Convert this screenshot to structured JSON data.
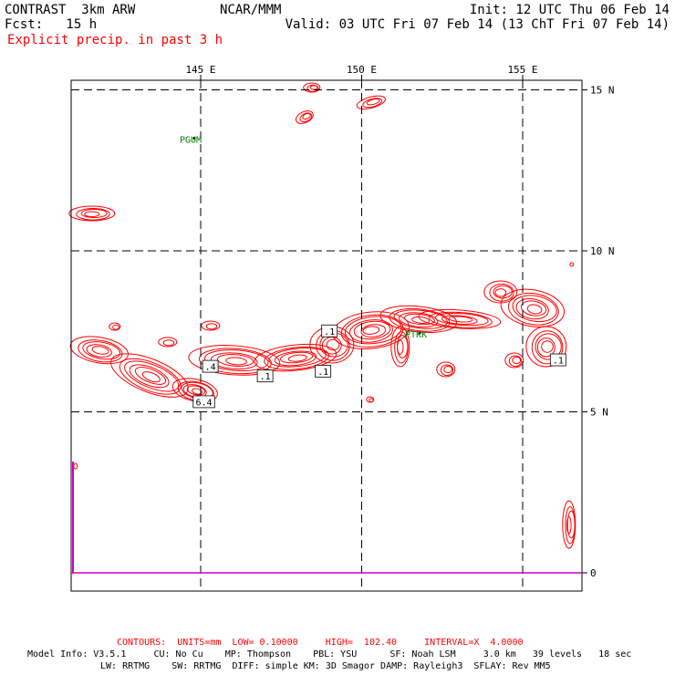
{
  "header": {
    "model": "CONTRAST  3km ARW",
    "org": "NCAR/MMM",
    "init": "Init: 12 UTC Thu 06 Feb 14",
    "fcst": "Fcst:   15 h",
    "valid": "Valid: 03 UTC Fri 07 Feb 14 (13 ChT Fri 07 Feb 14)",
    "field": "Explicit precip. in past 3 h"
  },
  "map": {
    "lon_ticks": [
      {
        "label": "145 E",
        "lon": 145
      },
      {
        "label": "150 E",
        "lon": 150
      },
      {
        "label": "155 E",
        "lon": 155
      }
    ],
    "lat_ticks": [
      {
        "label": "15 N",
        "lat": 15
      },
      {
        "label": "10 N",
        "lat": 10
      },
      {
        "label": "5 N",
        "lat": 5
      },
      {
        "label": "0",
        "lat": 0
      }
    ],
    "stations": [
      {
        "id": "PGUM",
        "lon": 144.8,
        "lat": 13.5
      },
      {
        "id": "PTKK",
        "lon": 151.8,
        "lat": 7.45
      }
    ],
    "contour_labels": [
      {
        "text": ".4",
        "lon": 145.3,
        "lat": 6.4
      },
      {
        "text": "6.4",
        "lon": 145.1,
        "lat": 5.3
      },
      {
        "text": ".1",
        "lon": 147.0,
        "lat": 6.1
      },
      {
        "text": ".1",
        "lon": 148.8,
        "lat": 6.25
      },
      {
        "text": ".1",
        "lon": 149.0,
        "lat": 7.5
      },
      {
        "text": ".1",
        "lon": 156.1,
        "lat": 6.6
      }
    ],
    "colors": {
      "contour": "#ff0000",
      "station": "#008000",
      "equator": "#cc00cc",
      "frame": "#000000"
    }
  },
  "footer": {
    "contours": "CONTOURS:  UNITS=mm  LOW= 0.10000     HIGH=  102.40     INTERVAL=X  4.0000",
    "model_line1": "Model Info: V3.5.1     CU: No Cu    MP: Thompson    PBL: YSU      SF: Noah LSM     3.0 km   39 levels   18 sec",
    "model_line2": "LW: RRTMG    SW: RRTMG  DIFF: simple KM: 3D Smagor DAMP: Rayleigh3  SFLAY: Rev MM5"
  }
}
